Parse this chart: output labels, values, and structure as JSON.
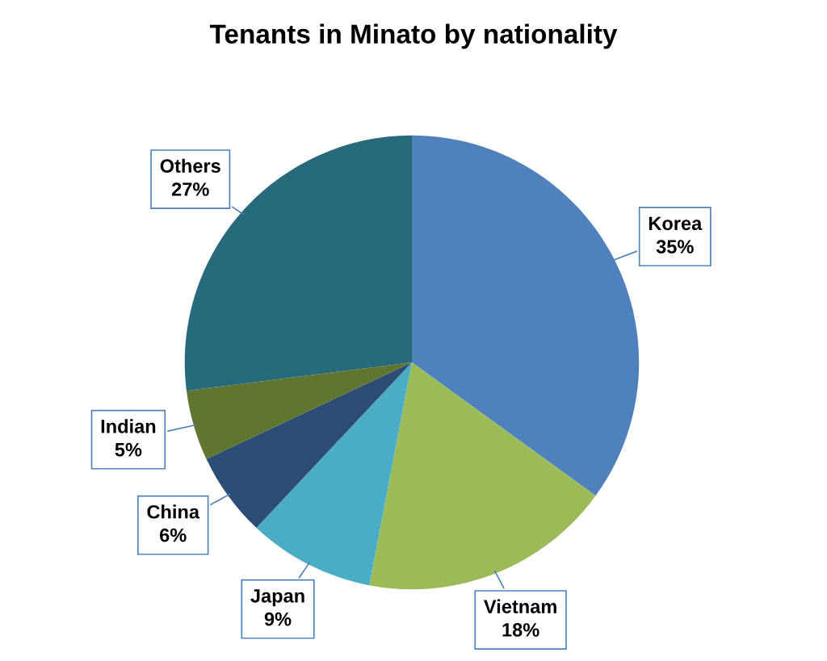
{
  "chart_data": {
    "type": "pie",
    "title": "Tenants in Minato by nationality",
    "categories": [
      "Korea",
      "Vietnam",
      "Japan",
      "China",
      "Indian",
      "Others"
    ],
    "values": [
      35,
      18,
      9,
      6,
      5,
      27
    ],
    "value_labels": [
      "35%",
      "18%",
      "9%",
      "6%",
      "5%",
      "27%"
    ],
    "colors": [
      "#4f81bd",
      "#9bbb59",
      "#4bacc6",
      "#2c4d75",
      "#5f7530",
      "#276a7c"
    ],
    "legend": false
  }
}
